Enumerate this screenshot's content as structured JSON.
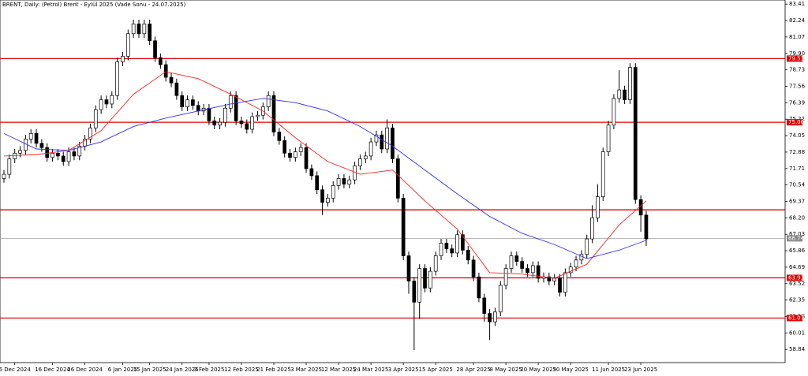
{
  "chart_data": {
    "type": "candlestick",
    "title": "BRENT, Daily: (Petrol) Brent - Eylül 2025 (Vade Sonu - 24.07.2025)",
    "categories": [
      null,
      null,
      "6 Dec 2024",
      null,
      null,
      null,
      null,
      null,
      null,
      "16 Dec 2024",
      null,
      null,
      null,
      null,
      null,
      "26 Dec 2024",
      null,
      null,
      null,
      null,
      null,
      null,
      "6 Jan 2025",
      null,
      null,
      null,
      null,
      "15 Jan 2025",
      null,
      null,
      null,
      null,
      null,
      "24 Jan 2025",
      null,
      null,
      null,
      null,
      "3 Feb 2025",
      null,
      null,
      null,
      null,
      null,
      "12 Feb 2025",
      null,
      null,
      null,
      null,
      null,
      "21 Feb 2025",
      null,
      null,
      null,
      null,
      null,
      "3 Mar 2025",
      null,
      null,
      null,
      null,
      null,
      "12 Mar 2025",
      null,
      null,
      null,
      null,
      null,
      "24 Mar 2025",
      null,
      null,
      null,
      null,
      null,
      "3 Apr 2025",
      null,
      null,
      null,
      null,
      null,
      "15 Apr 2025",
      null,
      null,
      null,
      null,
      null,
      null,
      "28 Apr 2025",
      null,
      null,
      null,
      null,
      null,
      "8 May 2025",
      null,
      null,
      null,
      null,
      null,
      "20 May 2025",
      null,
      null,
      null,
      null,
      null,
      "30 May 2025",
      null,
      null,
      null,
      null,
      null,
      null,
      "11 Jun 2025",
      null,
      null,
      null,
      null,
      null,
      "23 Jun 2025",
      null
    ],
    "open": [
      71.0,
      71.3,
      72.4,
      72.8,
      73.0,
      73.8,
      74.2,
      73.5,
      73.2,
      72.5,
      72.8,
      72.6,
      72.2,
      72.9,
      72.6,
      73.3,
      73.8,
      74.6,
      75.9,
      76.6,
      76.3,
      76.9,
      79.3,
      79.7,
      81.3,
      82.0,
      81.3,
      82.0,
      80.8,
      79.6,
      79.1,
      78.2,
      77.8,
      76.9,
      76.1,
      76.6,
      76.2,
      75.8,
      76.0,
      75.1,
      74.8,
      75.0,
      76.0,
      76.9,
      75.1,
      74.9,
      74.5,
      75.4,
      75.5,
      76.1,
      76.9,
      74.3,
      73.7,
      72.8,
      72.5,
      72.9,
      73.2,
      71.7,
      71.2,
      70.2,
      69.3,
      69.6,
      70.5,
      71.0,
      70.6,
      70.9,
      71.9,
      72.4,
      72.6,
      73.6,
      74.1,
      73.1,
      74.6,
      72.4,
      69.6,
      65.5,
      63.7,
      62.2,
      64.6,
      63.2,
      64.4,
      65.5,
      66.4,
      66.0,
      65.7,
      67.0,
      65.9,
      65.2,
      64.0,
      62.5,
      61.4,
      60.8,
      61.5,
      63.4,
      64.6,
      65.5,
      65.1,
      64.6,
      64.3,
      64.8,
      63.9,
      64.0,
      63.7,
      63.9,
      62.9,
      64.3,
      64.7,
      65.2,
      65.6,
      66.7,
      68.2,
      69.7,
      72.9,
      74.8,
      76.7,
      77.3,
      76.6,
      78.9,
      69.5,
      68.4
    ],
    "high": [
      71.6,
      72.7,
      73.1,
      73.3,
      74.1,
      74.5,
      74.5,
      73.8,
      73.5,
      73.1,
      73.1,
      72.9,
      73.2,
      73.2,
      73.6,
      74.1,
      74.9,
      76.2,
      76.9,
      76.9,
      77.2,
      79.6,
      80.0,
      81.6,
      82.3,
      82.3,
      82.3,
      82.3,
      81.1,
      79.9,
      79.4,
      78.5,
      78.1,
      77.2,
      76.9,
      76.9,
      76.5,
      76.3,
      76.3,
      75.4,
      75.3,
      76.3,
      77.2,
      77.2,
      75.4,
      75.2,
      75.7,
      75.8,
      76.4,
      77.2,
      77.2,
      74.6,
      74.0,
      73.1,
      73.2,
      73.5,
      73.5,
      72.0,
      71.5,
      70.5,
      69.9,
      70.8,
      71.3,
      71.3,
      71.2,
      72.2,
      72.7,
      72.9,
      73.9,
      74.4,
      74.4,
      75.2,
      74.9,
      72.7,
      69.9,
      65.8,
      64.0,
      64.9,
      64.9,
      64.7,
      65.8,
      66.7,
      66.7,
      66.3,
      67.3,
      67.3,
      66.2,
      65.5,
      64.3,
      62.8,
      61.7,
      61.8,
      63.7,
      64.9,
      65.8,
      65.8,
      65.4,
      64.9,
      65.1,
      65.1,
      64.3,
      64.3,
      64.2,
      64.2,
      64.6,
      65.0,
      65.5,
      65.9,
      67.0,
      69.1,
      70.6,
      73.2,
      75.1,
      77.0,
      78.7,
      77.6,
      79.2,
      79.2,
      69.8,
      68.7
    ],
    "low": [
      70.7,
      71.0,
      72.1,
      72.5,
      72.7,
      73.5,
      73.2,
      72.9,
      72.2,
      72.2,
      72.3,
      71.9,
      71.9,
      72.3,
      72.3,
      73.0,
      73.5,
      74.3,
      75.6,
      76.0,
      76.0,
      76.6,
      79.0,
      79.4,
      81.0,
      81.0,
      81.0,
      80.5,
      79.3,
      78.8,
      77.9,
      77.5,
      76.6,
      75.8,
      75.8,
      75.9,
      75.5,
      75.5,
      74.8,
      74.5,
      74.5,
      74.7,
      75.7,
      74.8,
      74.6,
      74.2,
      74.2,
      75.1,
      75.2,
      75.8,
      74.0,
      73.4,
      72.5,
      72.2,
      72.2,
      72.6,
      71.4,
      70.9,
      69.9,
      68.4,
      69.0,
      69.3,
      70.2,
      70.3,
      70.3,
      70.6,
      71.6,
      72.1,
      72.3,
      73.3,
      72.8,
      72.8,
      72.1,
      69.3,
      65.2,
      62.8,
      58.8,
      61.0,
      62.9,
      62.9,
      64.1,
      65.2,
      65.7,
      65.4,
      65.4,
      65.6,
      64.9,
      63.7,
      62.2,
      60.8,
      59.5,
      60.5,
      61.2,
      63.1,
      64.3,
      64.8,
      64.3,
      64.0,
      64.0,
      63.6,
      63.6,
      63.4,
      63.4,
      62.6,
      62.6,
      64.0,
      64.4,
      64.9,
      65.3,
      66.4,
      67.9,
      69.4,
      72.6,
      74.5,
      76.4,
      76.3,
      76.3,
      69.2,
      67.2,
      66.2
    ],
    "close": [
      71.3,
      72.4,
      72.8,
      73.0,
      73.8,
      74.2,
      73.5,
      73.2,
      72.5,
      72.8,
      72.6,
      72.2,
      72.9,
      72.6,
      73.3,
      73.8,
      74.6,
      75.9,
      76.6,
      76.3,
      76.9,
      79.3,
      79.7,
      81.3,
      82.0,
      81.3,
      82.0,
      80.8,
      79.6,
      79.1,
      78.2,
      77.8,
      76.9,
      76.1,
      76.6,
      76.2,
      75.8,
      76.0,
      75.1,
      74.8,
      75.0,
      76.0,
      76.9,
      75.1,
      74.9,
      74.5,
      75.4,
      75.5,
      76.1,
      76.9,
      74.3,
      73.7,
      72.8,
      72.5,
      72.9,
      73.2,
      71.7,
      71.2,
      70.2,
      69.3,
      69.6,
      70.5,
      71.0,
      70.6,
      70.9,
      71.9,
      72.4,
      72.6,
      73.6,
      74.1,
      73.1,
      74.6,
      72.4,
      69.6,
      65.5,
      63.7,
      62.2,
      64.6,
      63.2,
      64.4,
      65.5,
      66.4,
      66.0,
      65.7,
      67.0,
      65.9,
      65.2,
      64.0,
      62.5,
      61.4,
      60.8,
      61.5,
      63.4,
      64.6,
      65.5,
      65.1,
      64.6,
      64.3,
      64.8,
      63.9,
      64.0,
      63.7,
      63.9,
      62.9,
      64.3,
      64.7,
      65.2,
      65.6,
      66.7,
      68.2,
      69.7,
      72.9,
      74.8,
      76.7,
      77.3,
      76.6,
      78.9,
      69.5,
      68.4,
      66.7
    ],
    "series": [
      {
        "color": "#ff2020",
        "x": [
          0,
          6,
          12,
          18,
          24,
          30,
          36,
          42,
          48,
          54,
          60,
          66,
          72,
          78,
          84,
          90,
          96,
          102,
          108,
          114,
          119
        ],
        "values": [
          72.6,
          72.7,
          73.0,
          74.4,
          77.0,
          78.6,
          78.1,
          77.0,
          75.8,
          73.9,
          72.2,
          71.3,
          71.6,
          69.4,
          67.4,
          64.3,
          64.2,
          63.9,
          64.9,
          67.7,
          69.4
        ]
      },
      {
        "color": "#3030ff",
        "x": [
          0,
          6,
          12,
          18,
          24,
          30,
          36,
          42,
          48,
          54,
          60,
          66,
          72,
          78,
          84,
          90,
          96,
          102,
          108,
          114,
          119
        ],
        "values": [
          74.2,
          73.1,
          73.0,
          73.6,
          74.7,
          75.3,
          75.8,
          76.3,
          76.7,
          76.4,
          75.8,
          74.7,
          73.3,
          71.6,
          69.9,
          68.3,
          67.1,
          66.3,
          65.3,
          65.9,
          66.6
        ]
      }
    ],
    "levels": [
      79.53,
      {
        "value": 75,
        "label": "75.00"
      },
      63.93,
      61.07
    ],
    "level_color": "#e00000",
    "unlabeled_level": 68.77,
    "last_price": 66.74,
    "ylim": [
      57.9,
      83.7
    ],
    "yticks": [
      83.41,
      82.24,
      81.07,
      {
        "value": 79.9,
        "label": "79.90"
      },
      78.73,
      77.56,
      76.39,
      75.22,
      74.05,
      72.88,
      71.71,
      70.54,
      69.37,
      {
        "value": 68.2,
        "label": "68.20"
      },
      67.03,
      65.86,
      64.69,
      63.52,
      62.35,
      61.18,
      60.01,
      58.84
    ]
  }
}
